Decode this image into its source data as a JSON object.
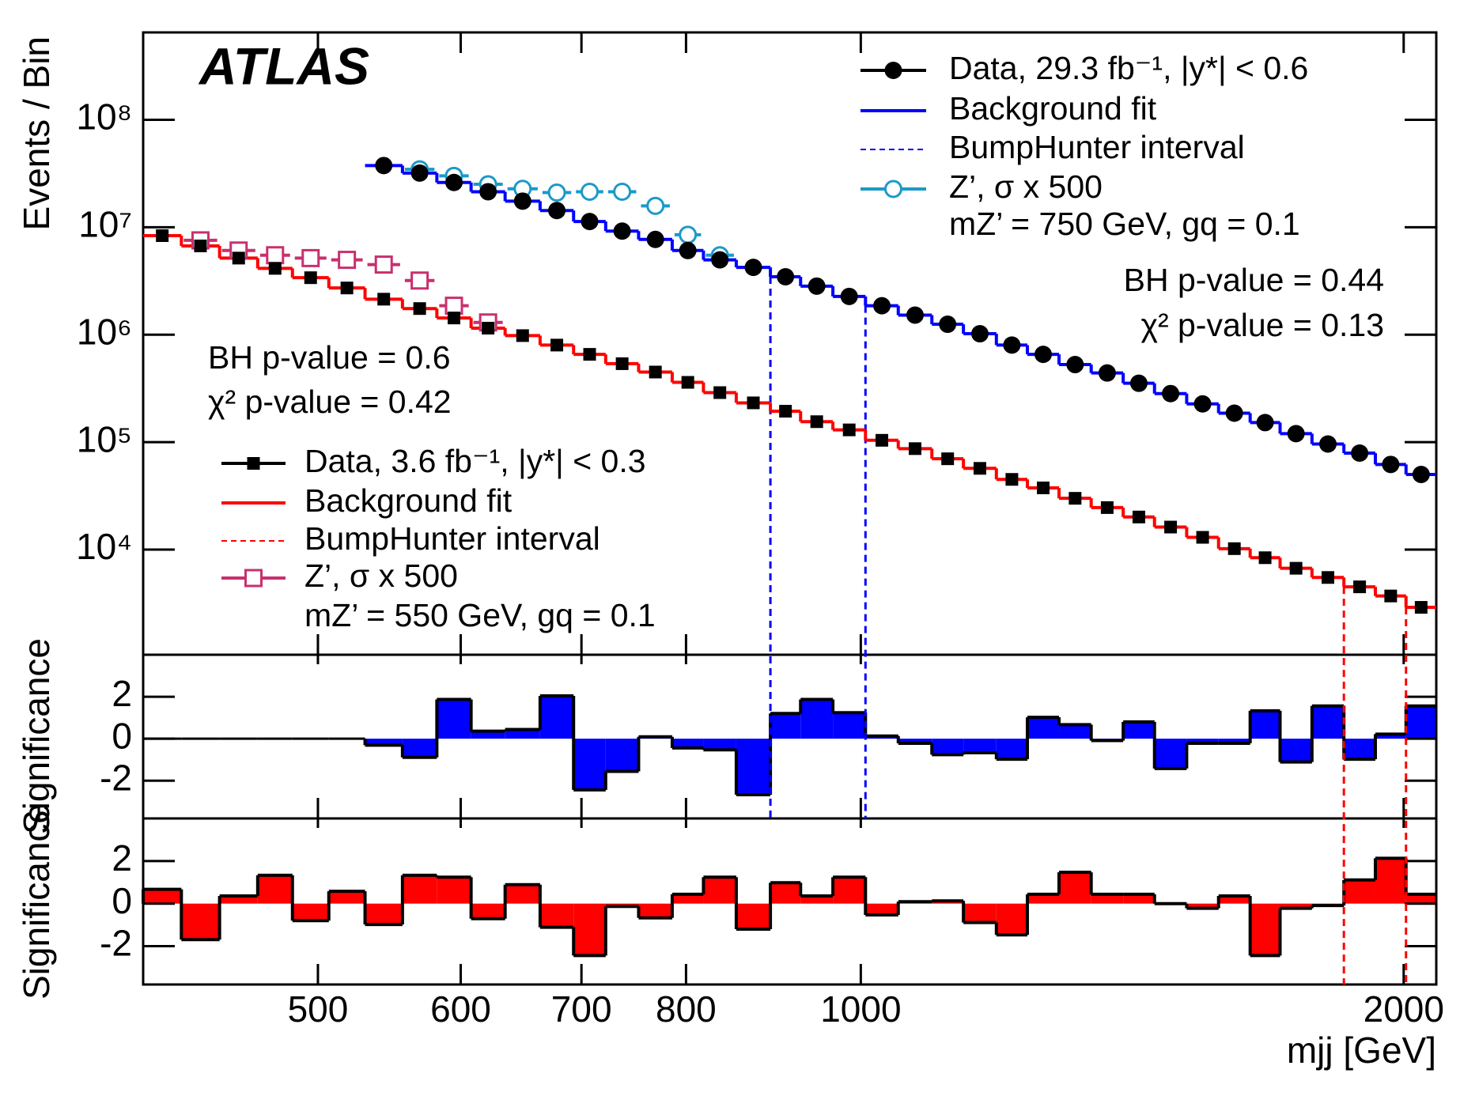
{
  "chart_data": {
    "type": "histogram",
    "annotation": "ATLAS",
    "bins": [
      400,
      420,
      441,
      463,
      484,
      507,
      531,
      557,
      582,
      608,
      635,
      664,
      693,
      722,
      753,
      786,
      818,
      853,
      891,
      926,
      965,
      1006,
      1049,
      1095,
      1140,
      1189,
      1237,
      1288,
      1342,
      1398,
      1455,
      1516,
      1579,
      1644,
      1708,
      1779,
      1853,
      1929,
      2006,
      2085
    ],
    "log_x": true,
    "xlim": [
      400,
      2085
    ],
    "xticks": [
      500,
      600,
      700,
      800,
      1000,
      2000
    ],
    "xlabel": "mjj [GeV]",
    "log_y": true,
    "ylabel": "Events / Bin",
    "ylim": [
      1050,
      650000000
    ],
    "yticks": [
      {
        "value": 10000,
        "label": "10⁴"
      },
      {
        "value": 100000,
        "label": "10⁵"
      },
      {
        "value": 1000000,
        "label": "10⁶"
      },
      {
        "value": 10000000,
        "label": "10⁷"
      },
      {
        "value": 100000000,
        "label": "10⁸"
      }
    ],
    "significance": {
      "ylabel": "Significance",
      "ylim": [
        -3.8,
        4
      ],
      "yticks": [
        -2,
        0,
        2
      ]
    },
    "datasets": [
      {
        "name": "Data, 29.3 fb⁻¹, |y*| < 0.6",
        "color": "#000000",
        "marker": "circle",
        "values": [
          null,
          null,
          null,
          null,
          null,
          null,
          37500000,
          31900000,
          26100000,
          21400000,
          17500000,
          14300000,
          11300000,
          9200000,
          7700000,
          6070000,
          4970000,
          4230000,
          3460000,
          2830000,
          2270000,
          1860000,
          1520000,
          1250000,
          1020000,
          800000,
          656000,
          527000,
          440000,
          353000,
          283000,
          227000,
          186000,
          152000,
          120000,
          96000,
          79000,
          62000,
          50000
        ],
        "fit": {
          "name": "Background fit",
          "color": "#0000ff",
          "values": [
            null,
            null,
            null,
            null,
            null,
            null,
            37500000,
            31900000,
            26100000,
            21400000,
            17500000,
            14300000,
            11300000,
            9200000,
            7700000,
            6070000,
            4970000,
            4230000,
            3460000,
            2830000,
            2270000,
            1860000,
            1520000,
            1250000,
            1020000,
            800000,
            656000,
            527000,
            440000,
            353000,
            283000,
            227000,
            186000,
            152000,
            120000,
            96000,
            79000,
            62000,
            50000
          ]
        },
        "bumphunter": {
          "name": "BumpHunter interval",
          "color": "#0000ff",
          "interval": [
            891,
            1006
          ]
        },
        "signal": {
          "name": "Z’, σ x 500",
          "note": "mZ’ = 750 GeV, gq = 0.1",
          "color": "#1a9ac9",
          "marker": "circle",
          "values": [
            null,
            null,
            null,
            null,
            null,
            null,
            null,
            34600000,
            30100000,
            25100000,
            22800000,
            21000000,
            21400000,
            21400000,
            15800000,
            8500000,
            5490000,
            null,
            null,
            null,
            null,
            null,
            null,
            null,
            null,
            null,
            null,
            null,
            null,
            null,
            null,
            null,
            null,
            null,
            null,
            null,
            null,
            null,
            null
          ]
        },
        "p_values": [
          "BH p-value = 0.44",
          "χ² p-value = 0.13"
        ],
        "significance_color": "#0000ff",
        "significance": [
          null,
          null,
          null,
          null,
          null,
          null,
          -0.31,
          -0.89,
          1.87,
          0.36,
          0.44,
          2.04,
          -2.44,
          -1.56,
          0.09,
          -0.44,
          -0.53,
          -2.67,
          1.2,
          1.87,
          1.24,
          0.13,
          -0.22,
          -0.76,
          -0.67,
          -0.98,
          1.02,
          0.67,
          -0.09,
          0.8,
          -1.42,
          -0.22,
          -0.22,
          1.33,
          -1.11,
          1.56,
          -0.98,
          0.22,
          1.56
        ]
      },
      {
        "name": "Data, 3.6 fb⁻¹, |y*| < 0.3",
        "color": "#000000",
        "marker": "square",
        "values": [
          8350000,
          6700000,
          5160000,
          4140000,
          3390000,
          2720000,
          2140000,
          1750000,
          1430000,
          1150000,
          980000,
          800000,
          656000,
          537000,
          449000,
          360000,
          289000,
          232000,
          194000,
          155000,
          130000,
          104000,
          87000,
          70000,
          57000,
          45000,
          37500,
          30000,
          24600,
          20100,
          16200,
          13000,
          10200,
          8400,
          6700,
          5500,
          4500,
          3700,
          2900
        ],
        "fit": {
          "name": "Background fit",
          "color": "#ff0000",
          "values": [
            8350000,
            6700000,
            5160000,
            4140000,
            3390000,
            2720000,
            2140000,
            1750000,
            1430000,
            1150000,
            980000,
            800000,
            656000,
            537000,
            449000,
            360000,
            289000,
            232000,
            194000,
            155000,
            130000,
            104000,
            87000,
            70000,
            57000,
            45000,
            37500,
            30000,
            24600,
            20100,
            16200,
            13000,
            10200,
            8400,
            6700,
            5500,
            4500,
            3700,
            2900
          ]
        },
        "bumphunter": {
          "name": "BumpHunter interval",
          "color": "#ff0000",
          "interval": [
            1853,
            2006
          ]
        },
        "signal": {
          "name": "Z’, σ x 500",
          "note": "mZ’ = 550 GeV, gq = 0.1",
          "color": "#c8306e",
          "marker": "square",
          "values": [
            null,
            7550000,
            6070000,
            5490000,
            5160000,
            4970000,
            4490000,
            3190000,
            1860000,
            1300000,
            null,
            null,
            null,
            null,
            null,
            null,
            null,
            null,
            null,
            null,
            null,
            null,
            null,
            null,
            null,
            null,
            null,
            null,
            null,
            null,
            null,
            null,
            null,
            null,
            null,
            null,
            null,
            null,
            null
          ]
        },
        "p_values": [
          "BH p-value = 0.6",
          "χ² p-value = 0.42"
        ],
        "significance_color": "#ff0000",
        "significance": [
          0.67,
          -1.69,
          0.36,
          1.33,
          -0.8,
          0.58,
          -0.98,
          1.33,
          1.24,
          -0.71,
          0.89,
          -1.11,
          -2.44,
          -0.13,
          -0.67,
          0.44,
          1.24,
          -1.2,
          0.98,
          0.36,
          1.24,
          -0.53,
          0.09,
          0.13,
          -0.89,
          -1.47,
          0.44,
          1.47,
          0.44,
          0.44,
          0,
          -0.22,
          0.36,
          -2.44,
          -0.22,
          -0.09,
          1.11,
          2.13,
          0.44
        ]
      }
    ]
  }
}
